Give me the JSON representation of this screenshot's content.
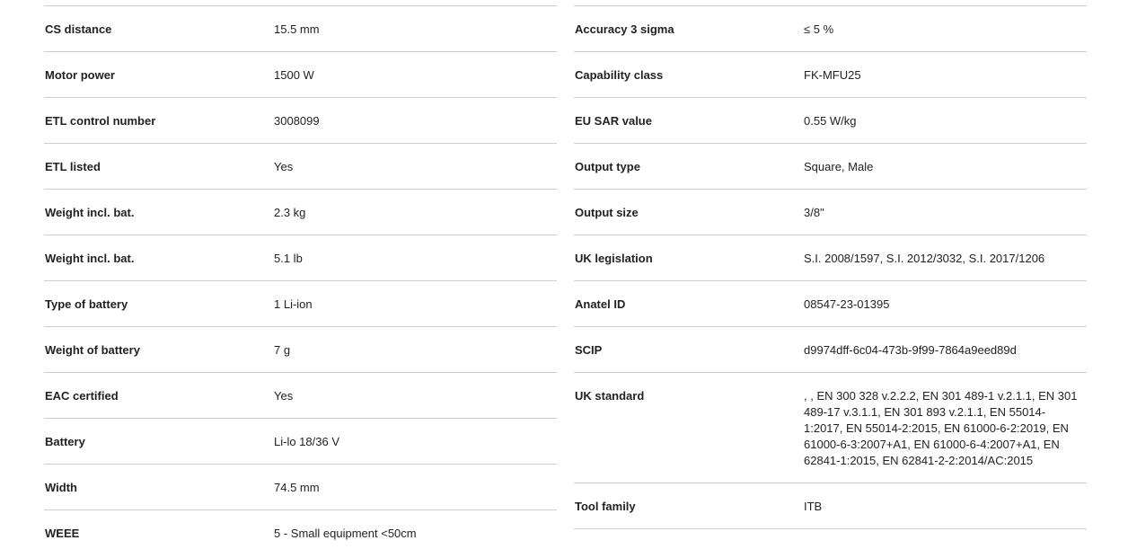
{
  "left": [
    {
      "label": "CS distance",
      "value": "15.5 mm"
    },
    {
      "label": "Motor power",
      "value": "1500 W"
    },
    {
      "label": "ETL control number",
      "value": "3008099"
    },
    {
      "label": "ETL listed",
      "value": "Yes"
    },
    {
      "label": "Weight incl. bat.",
      "value": "2.3 kg"
    },
    {
      "label": "Weight incl. bat.",
      "value": "5.1 lb"
    },
    {
      "label": "Type of battery",
      "value": "1 Li-ion"
    },
    {
      "label": "Weight of battery",
      "value": "7 g"
    },
    {
      "label": "EAC certified",
      "value": "Yes"
    },
    {
      "label": "Battery",
      "value": "Li-lo 18/36 V"
    },
    {
      "label": "Width",
      "value": "74.5 mm"
    },
    {
      "label": "WEEE",
      "value": "5 - Small equipment <50cm"
    }
  ],
  "right": [
    {
      "label": "Accuracy 3 sigma",
      "value": "≤ 5 %"
    },
    {
      "label": "Capability class",
      "value": "FK-MFU25"
    },
    {
      "label": "EU SAR value",
      "value": "0.55 W/kg"
    },
    {
      "label": "Output type",
      "value": "Square, Male"
    },
    {
      "label": "Output size",
      "value": "3/8\""
    },
    {
      "label": "UK legislation",
      "value": "S.I. 2008/1597, S.I. 2012/3032, S.I. 2017/1206"
    },
    {
      "label": "Anatel ID",
      "value": "08547-23-01395"
    },
    {
      "label": "SCIP",
      "value": "d9974dff-6c04-473b-9f99-7864a9eed89d"
    },
    {
      "label": "UK standard",
      "value": ", , EN 300 328 v.2.2.2, EN 301 489-1 v.2.1.1, EN 301 489-17 v.3.1.1, EN 301 893 v.2.1.1, EN 55014-1:2017, EN 55014-2:2015, EN 61000-6-2:2019, EN 61000-6-3:2007+A1, EN 61000-6-4:2007+A1, EN 62841-1:2015, EN 62841-2-2:2014/AC:2015"
    },
    {
      "label": "Tool family",
      "value": "ITB"
    }
  ]
}
